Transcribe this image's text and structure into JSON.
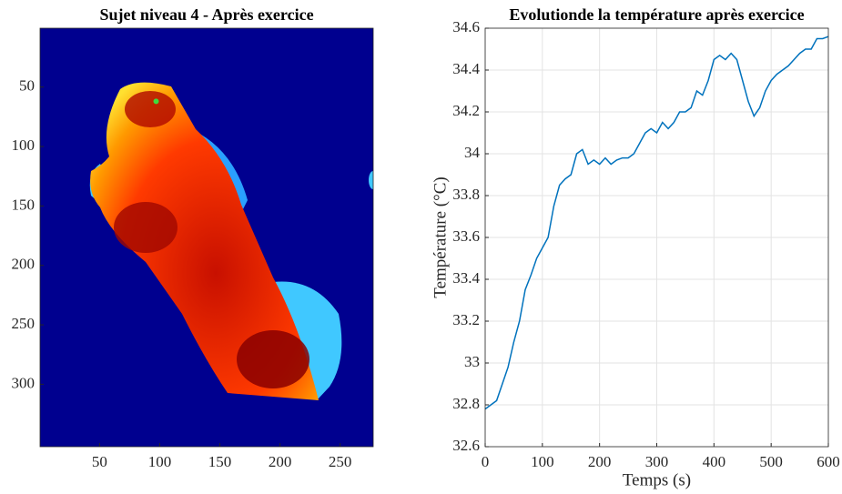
{
  "chart_data": [
    {
      "type": "image",
      "title": "Sujet niveau 4 - Après exercice",
      "xlim": [
        0.5,
        277.5
      ],
      "ylim": [
        0.5,
        352.5
      ],
      "xticks": [
        50,
        100,
        150,
        200,
        250
      ],
      "yticks": [
        50,
        100,
        150,
        200,
        250,
        300
      ],
      "marker": {
        "x": 97,
        "y": 62,
        "color": "#3ddc3d"
      }
    },
    {
      "type": "line",
      "title": "Evolutionde la température après exercice",
      "x_label": "Temps (s)",
      "y_label": "Température (°C)",
      "x": [
        0,
        10,
        20,
        30,
        40,
        50,
        60,
        70,
        80,
        90,
        100,
        110,
        120,
        130,
        140,
        150,
        160,
        170,
        180,
        190,
        200,
        210,
        220,
        230,
        240,
        250,
        260,
        270,
        280,
        290,
        300,
        310,
        320,
        330,
        340,
        350,
        360,
        370,
        380,
        390,
        400,
        410,
        420,
        430,
        440,
        450,
        460,
        470,
        480,
        490,
        500,
        510,
        520,
        530,
        540,
        550,
        560,
        570,
        580,
        590,
        600
      ],
      "series": [
        {
          "color": "#0072bd",
          "values": [
            32.78,
            32.8,
            32.82,
            32.9,
            32.98,
            33.1,
            33.2,
            33.35,
            33.42,
            33.5,
            33.55,
            33.6,
            33.75,
            33.85,
            33.88,
            33.9,
            34.0,
            34.02,
            33.95,
            33.97,
            33.95,
            33.98,
            33.95,
            33.97,
            33.98,
            33.98,
            34.0,
            34.05,
            34.1,
            34.12,
            34.1,
            34.15,
            34.12,
            34.15,
            34.2,
            34.2,
            34.22,
            34.3,
            34.28,
            34.35,
            34.45,
            34.47,
            34.45,
            34.48,
            34.45,
            34.35,
            34.25,
            34.18,
            34.22,
            34.3,
            34.35,
            34.38,
            34.4,
            34.42,
            34.45,
            34.48,
            34.5,
            34.5,
            34.55,
            34.55,
            34.56
          ]
        }
      ],
      "xlim": [
        0,
        600
      ],
      "ylim": [
        32.6,
        34.6
      ],
      "xticks": [
        0,
        100,
        200,
        300,
        400,
        500,
        600
      ],
      "yticks": [
        32.6,
        32.8,
        33,
        33.2,
        33.4,
        33.6,
        33.8,
        34,
        34.2,
        34.4,
        34.6
      ],
      "grid": true
    }
  ]
}
